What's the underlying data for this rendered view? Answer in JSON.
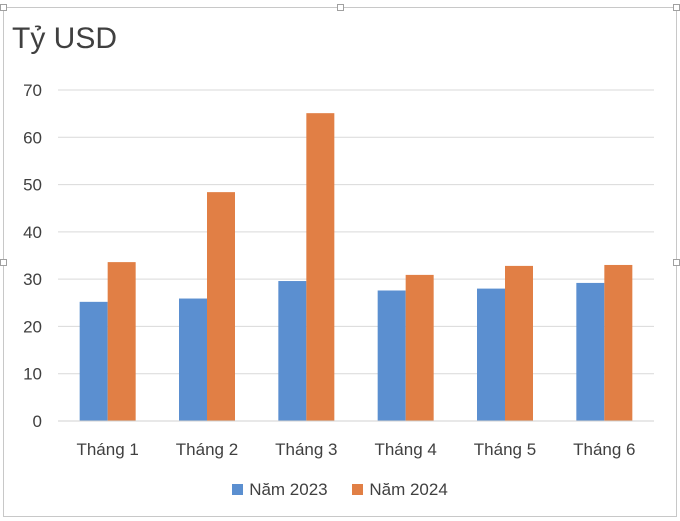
{
  "chart_data": {
    "type": "bar",
    "title": "",
    "ylabel": "Tỷ USD",
    "xlabel": "",
    "categories": [
      "Tháng 1",
      "Tháng 2",
      "Tháng 3",
      "Tháng 4",
      "Tháng 5",
      "Tháng 6"
    ],
    "series": [
      {
        "name": "Năm 2023",
        "color": "#5b8fd0",
        "values": [
          25.2,
          25.9,
          29.6,
          27.6,
          28.0,
          29.2
        ]
      },
      {
        "name": "Năm 2024",
        "color": "#e17f45",
        "values": [
          33.6,
          48.4,
          65.1,
          30.9,
          32.8,
          33.0
        ]
      }
    ],
    "ylim": [
      0,
      70
    ],
    "yticks": [
      "0",
      "10",
      "20",
      "30",
      "40",
      "50",
      "60",
      "70"
    ],
    "grid": true,
    "legend_position": "bottom"
  }
}
